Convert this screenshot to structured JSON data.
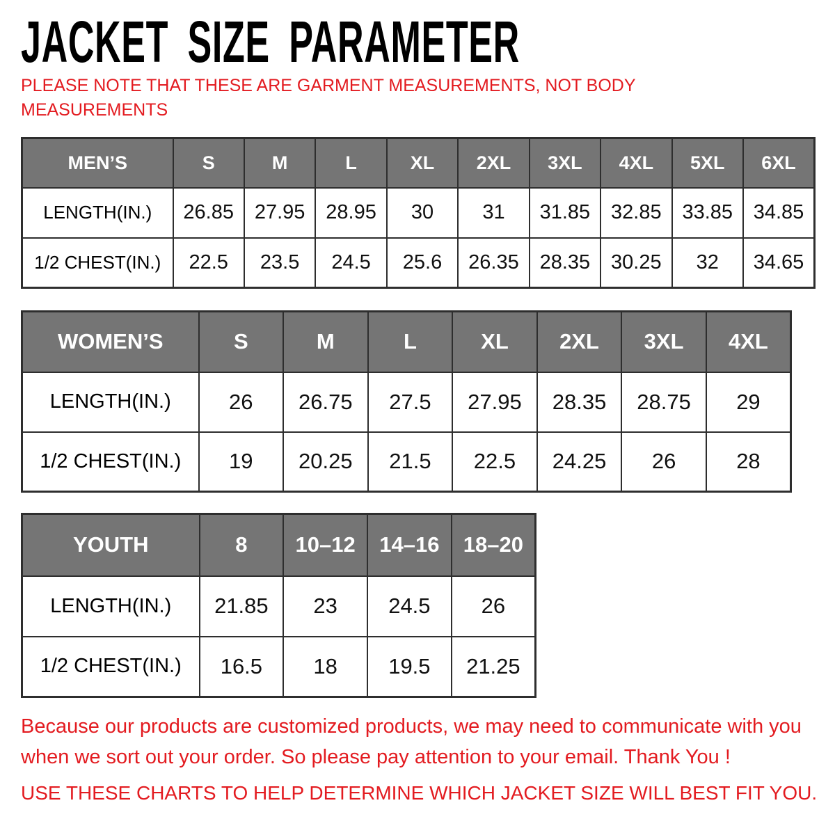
{
  "page": {
    "title": "JACKET SIZE PARAMETER",
    "note_lines": [
      "PLEASE NOTE THAT THESE ARE GARMENT MEASUREMENTS, NOT BODY",
      "MEASUREMENTS"
    ],
    "colors": {
      "accent_red": "#e31b20",
      "header_gray": "#757575",
      "border_dark": "#2e2e2e",
      "text_black": "#000000",
      "background": "#ffffff"
    }
  },
  "tables": [
    {
      "id": "mens",
      "header": [
        "MEN’S",
        "S",
        "M",
        "L",
        "XL",
        "2XL",
        "3XL",
        "4XL",
        "5XL",
        "6XL"
      ],
      "rows": [
        {
          "label": "LENGTH(IN.)",
          "values": [
            "26.85",
            "27.95",
            "28.95",
            "30",
            "31",
            "31.85",
            "32.85",
            "33.85",
            "34.85"
          ]
        },
        {
          "label": "1/2 CHEST(IN.)",
          "values": [
            "22.5",
            "23.5",
            "24.5",
            "25.6",
            "26.35",
            "28.35",
            "30.25",
            "32",
            "34.65"
          ]
        }
      ]
    },
    {
      "id": "womens",
      "header": [
        "WOMEN’S",
        "S",
        "M",
        "L",
        "XL",
        "2XL",
        "3XL",
        "4XL"
      ],
      "rows": [
        {
          "label": "LENGTH(IN.)",
          "values": [
            "26",
            "26.75",
            "27.5",
            "27.95",
            "28.35",
            "28.75",
            "29"
          ]
        },
        {
          "label": "1/2 CHEST(IN.)",
          "values": [
            "19",
            "20.25",
            "21.5",
            "22.5",
            "24.25",
            "26",
            "28"
          ]
        }
      ]
    },
    {
      "id": "youth",
      "header": [
        "YOUTH",
        "8",
        "10–12",
        "14–16",
        "18–20"
      ],
      "rows": [
        {
          "label": "LENGTH(IN.)",
          "values": [
            "21.85",
            "23",
            "24.5",
            "26"
          ]
        },
        {
          "label": "1/2 CHEST(IN.)",
          "values": [
            "16.5",
            "18",
            "19.5",
            "21.25"
          ]
        }
      ]
    }
  ],
  "footer": {
    "para1_lines": [
      "Because our products are customized products, we may need to communicate with you",
      "when we sort out your order. So please pay attention to your email. Thank You !"
    ],
    "para2": "USE THESE CHARTS TO HELP DETERMINE WHICH JACKET SIZE WILL BEST FIT YOU."
  }
}
